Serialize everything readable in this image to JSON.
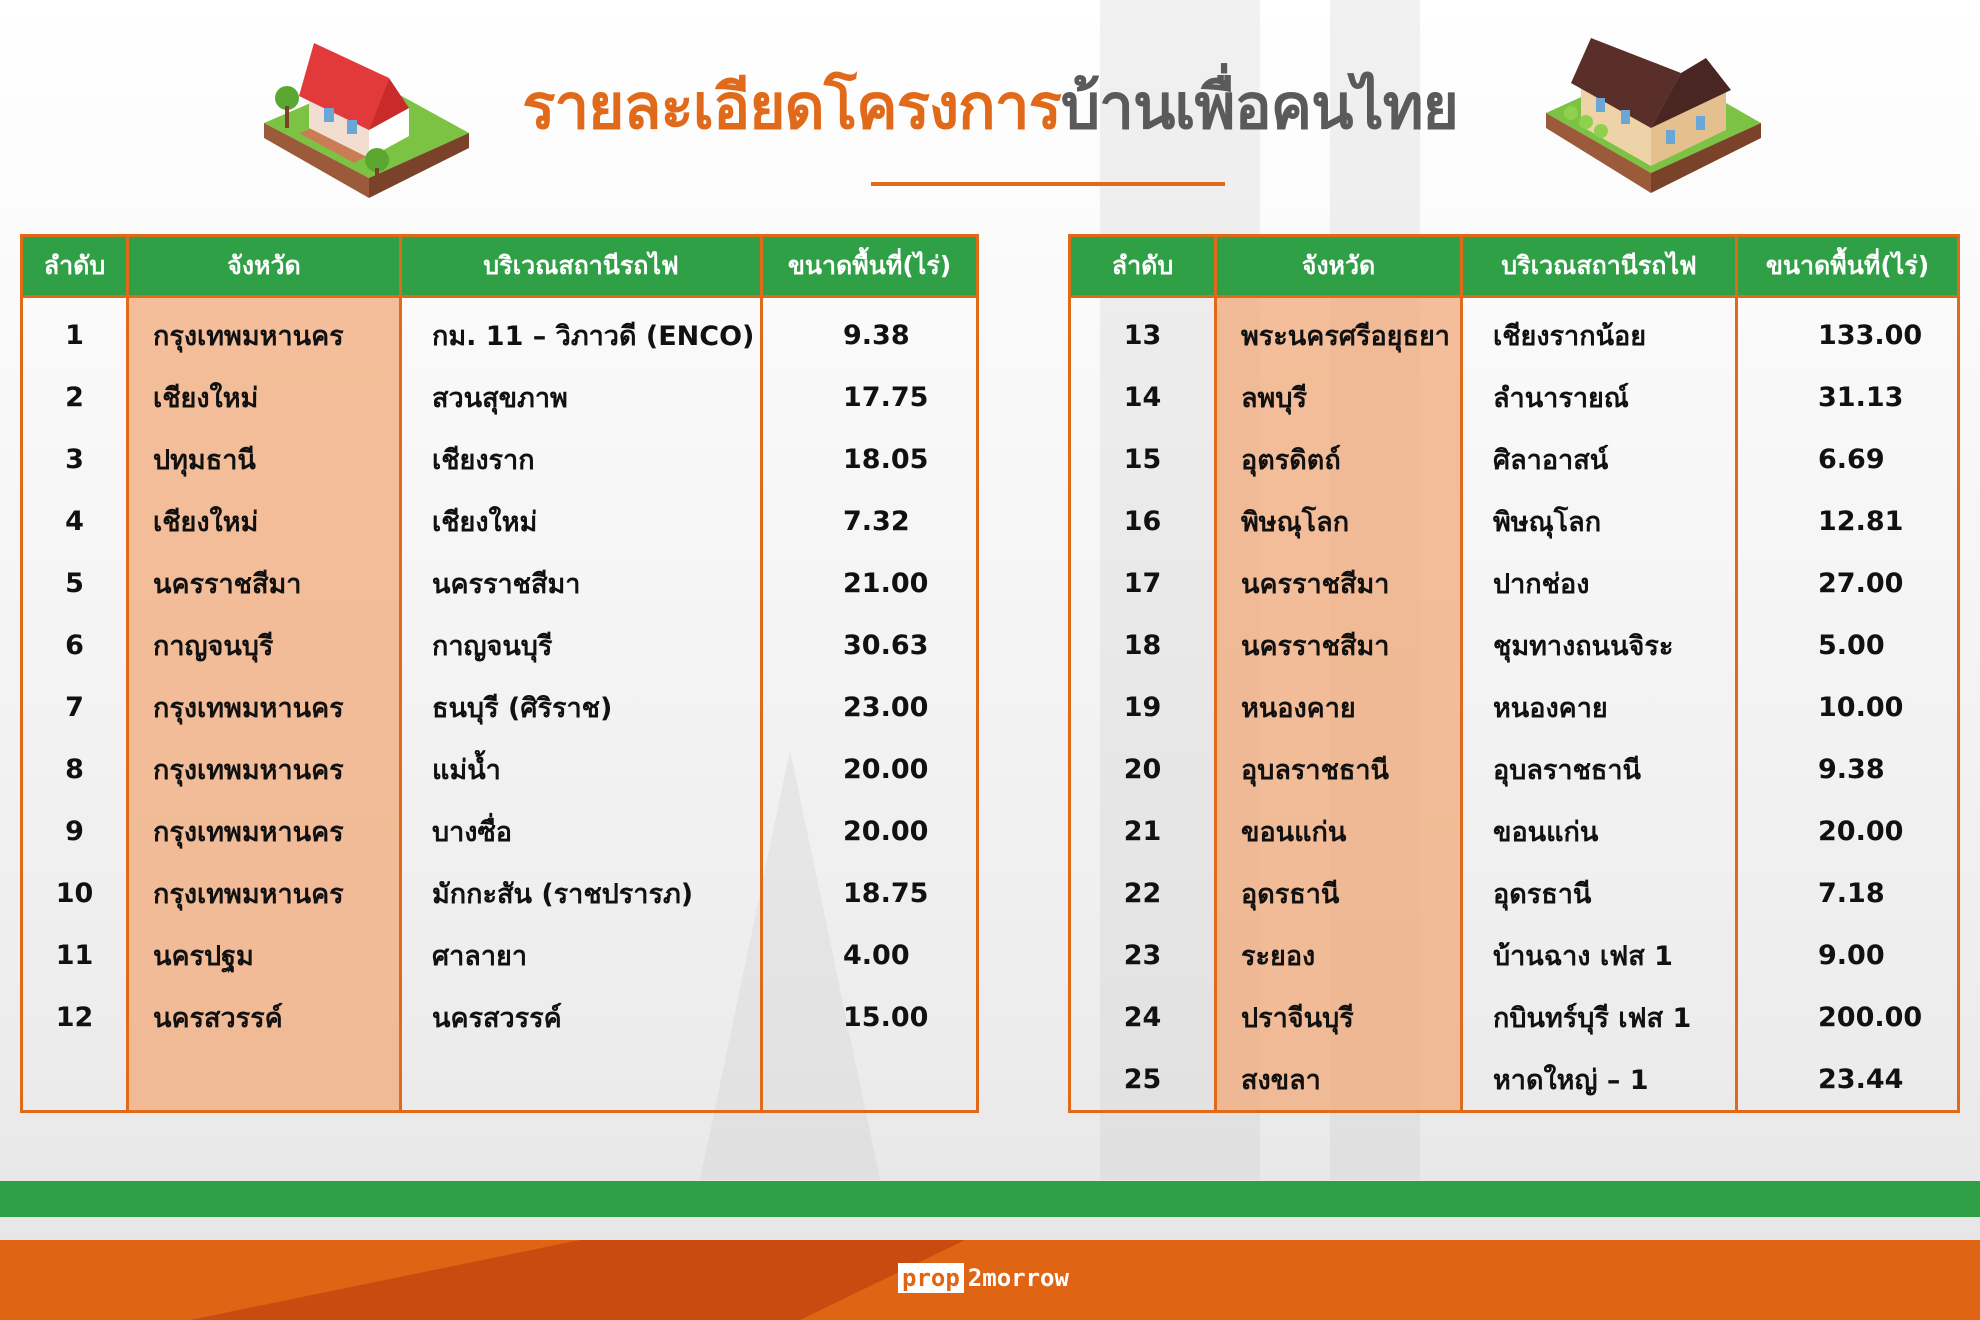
{
  "title": {
    "part1": "รายละเอียดโครงการ",
    "part2": "บ้านเพื่อคนไทย"
  },
  "colors": {
    "orange": "#e06a1a",
    "green": "#2fa046",
    "province_fill": "#f0b893",
    "title_gray": "#5a5a5a"
  },
  "table_headers": [
    "ลำดับ",
    "จังหวัด",
    "บริเวณสถานีรถไฟ",
    "ขนาดพื้นที่(ไร่)"
  ],
  "left_table": [
    {
      "no": "1",
      "province": "กรุงเทพมหานคร",
      "station": "กม. 11 – วิภาวดี (ENCO)",
      "area": "9.38"
    },
    {
      "no": "2",
      "province": "เชียงใหม่",
      "station": "สวนสุขภาพ",
      "area": "17.75"
    },
    {
      "no": "3",
      "province": "ปทุมธานี",
      "station": "เชียงราก",
      "area": "18.05"
    },
    {
      "no": "4",
      "province": "เชียงใหม่",
      "station": "เชียงใหม่",
      "area": "7.32"
    },
    {
      "no": "5",
      "province": "นครราชสีมา",
      "station": "นครราชสีมา",
      "area": "21.00"
    },
    {
      "no": "6",
      "province": "กาญจนบุรี",
      "station": "กาญจนบุรี",
      "area": "30.63"
    },
    {
      "no": "7",
      "province": "กรุงเทพมหานคร",
      "station": "ธนบุรี (ศิริราช)",
      "area": "23.00"
    },
    {
      "no": "8",
      "province": "กรุงเทพมหานคร",
      "station": "แม่น้ำ",
      "area": "20.00"
    },
    {
      "no": "9",
      "province": "กรุงเทพมหานคร",
      "station": "บางซื่อ",
      "area": "20.00"
    },
    {
      "no": "10",
      "province": "กรุงเทพมหานคร",
      "station": "มักกะสัน (ราชปรารภ)",
      "area": "18.75"
    },
    {
      "no": "11",
      "province": "นครปฐม",
      "station": "ศาลายา",
      "area": "4.00"
    },
    {
      "no": "12",
      "province": "นครสวรรค์",
      "station": "นครสวรรค์",
      "area": "15.00"
    }
  ],
  "right_table": [
    {
      "no": "13",
      "province": "พระนครศรีอยุธยา",
      "station": "เชียงรากน้อย",
      "area": "133.00"
    },
    {
      "no": "14",
      "province": "ลพบุรี",
      "station": "ลำนารายณ์",
      "area": "31.13"
    },
    {
      "no": "15",
      "province": "อุตรดิตถ์",
      "station": "ศิลาอาสน์",
      "area": "6.69"
    },
    {
      "no": "16",
      "province": "พิษณุโลก",
      "station": "พิษณุโลก",
      "area": "12.81"
    },
    {
      "no": "17",
      "province": "นครราชสีมา",
      "station": "ปากช่อง",
      "area": "27.00"
    },
    {
      "no": "18",
      "province": "นครราชสีมา",
      "station": "ชุมทางถนนจิระ",
      "area": "5.00"
    },
    {
      "no": "19",
      "province": "หนองคาย",
      "station": "หนองคาย",
      "area": "10.00"
    },
    {
      "no": "20",
      "province": "อุบลราชธานี",
      "station": "อุบลราชธานี",
      "area": "9.38"
    },
    {
      "no": "21",
      "province": "ขอนแก่น",
      "station": "ขอนแก่น",
      "area": "20.00"
    },
    {
      "no": "22",
      "province": "อุดรธานี",
      "station": "อุดรธานี",
      "area": "7.18"
    },
    {
      "no": "23",
      "province": "ระยอง",
      "station": "บ้านฉาง เฟส 1",
      "area": "9.00"
    },
    {
      "no": "24",
      "province": "ปราจีนบุรี",
      "station": "กบินทร์บุรี เฟส 1",
      "area": "200.00"
    },
    {
      "no": "25",
      "province": "สงขลา",
      "station": "หาดใหญ่ – 1",
      "area": "23.44"
    }
  ],
  "footer": {
    "logo_box": "prop",
    "logo_rest": "2morrow"
  },
  "icons": {
    "left": "red-roof-house-icon",
    "right": "brown-roof-house-icon"
  }
}
